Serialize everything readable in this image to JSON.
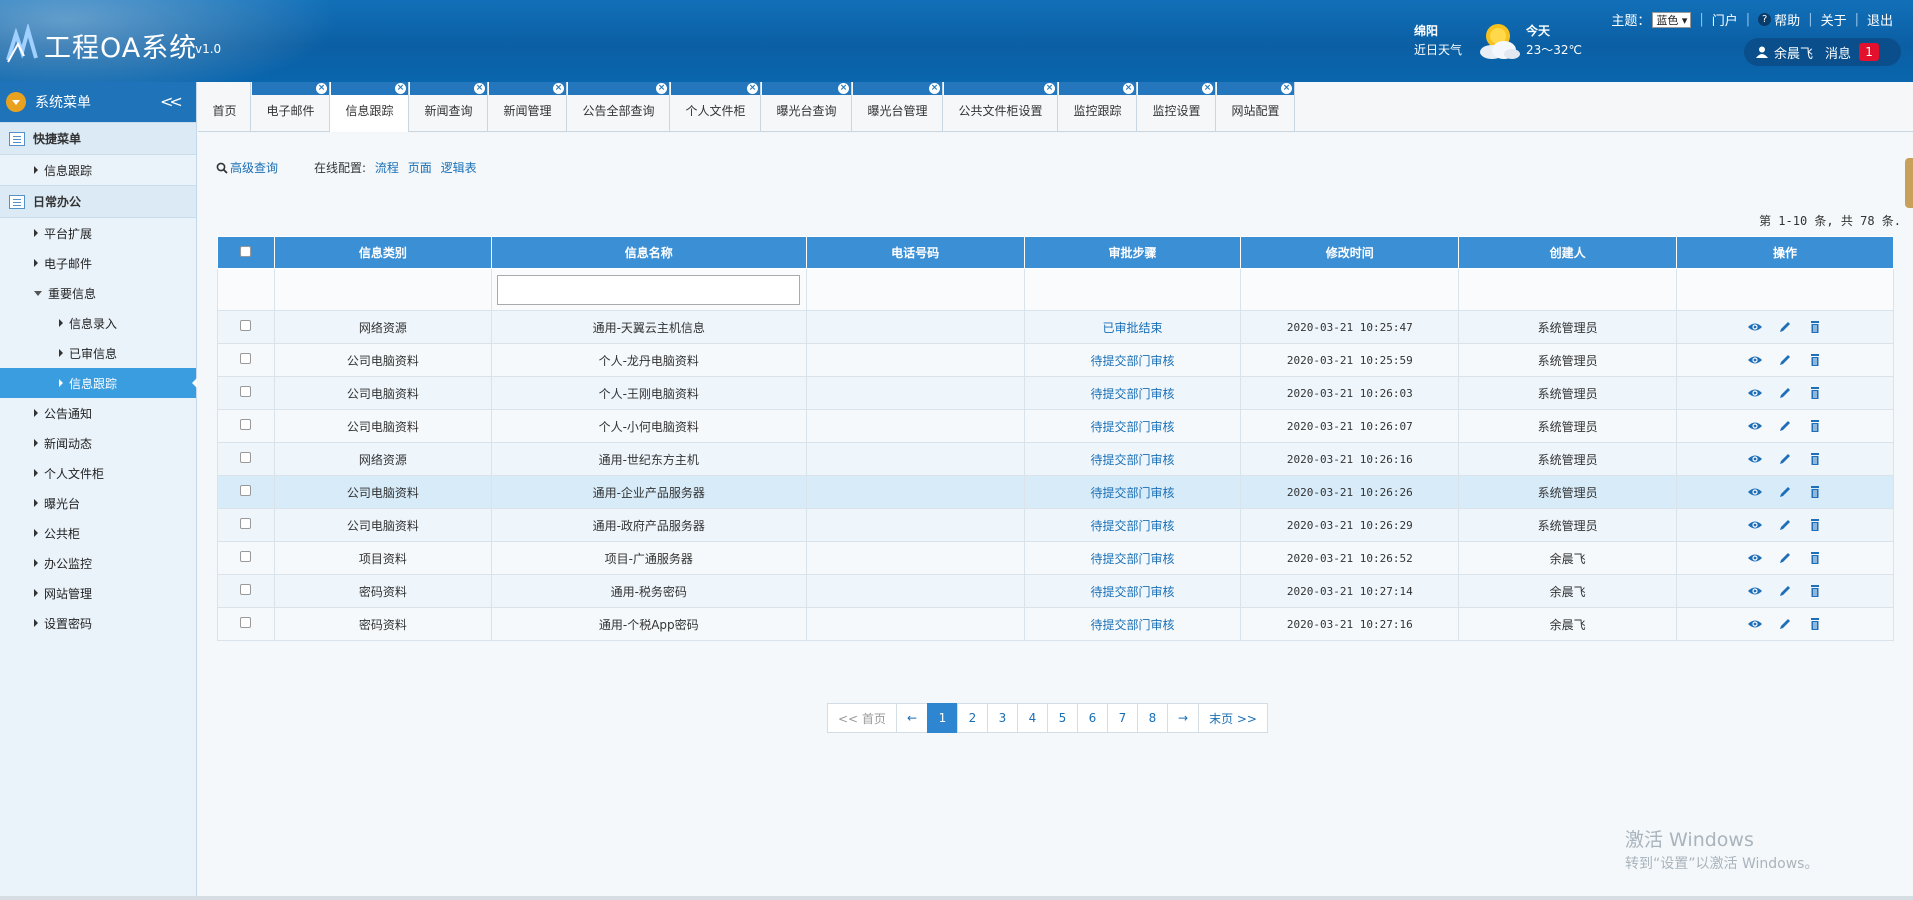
{
  "header": {
    "title": "工程OA系统",
    "version": "v1.0",
    "weather": {
      "city": "绵阳",
      "recent_label": "近日天气",
      "today_label": "今天",
      "temp": "23～32℃"
    },
    "theme_label": "主题：",
    "theme_value": "蓝色",
    "portal": "门户",
    "help": "帮助",
    "about": "关于",
    "logout": "退出",
    "user_name": "余晨飞",
    "message_label": "消息",
    "message_count": "1"
  },
  "sidebar": {
    "title": "系统菜单",
    "quick_menu": "快捷菜单",
    "quick_items": [
      "信息跟踪"
    ],
    "daily_office": "日常办公",
    "items": [
      {
        "label": "平台扩展",
        "level": 1
      },
      {
        "label": "电子邮件",
        "level": 1
      },
      {
        "label": "重要信息",
        "level": 1,
        "expanded": true
      },
      {
        "label": "信息录入",
        "level": 2
      },
      {
        "label": "已审信息",
        "level": 2
      },
      {
        "label": "信息跟踪",
        "level": 2,
        "active": true
      },
      {
        "label": "公告通知",
        "level": 1
      },
      {
        "label": "新闻动态",
        "level": 1
      },
      {
        "label": "个人文件柜",
        "level": 1
      },
      {
        "label": "曝光台",
        "level": 1
      },
      {
        "label": "公共柜",
        "level": 1
      },
      {
        "label": "办公监控",
        "level": 1
      },
      {
        "label": "网站管理",
        "level": 1
      },
      {
        "label": "设置密码",
        "level": 1
      }
    ]
  },
  "tabs": [
    {
      "label": "首页",
      "closable": false
    },
    {
      "label": "电子邮件",
      "closable": true
    },
    {
      "label": "信息跟踪",
      "closable": true,
      "active": true
    },
    {
      "label": "新闻查询",
      "closable": true
    },
    {
      "label": "新闻管理",
      "closable": true
    },
    {
      "label": "公告全部查询",
      "closable": true
    },
    {
      "label": "个人文件柜",
      "closable": true
    },
    {
      "label": "曝光台查询",
      "closable": true
    },
    {
      "label": "曝光台管理",
      "closable": true
    },
    {
      "label": "公共文件柜设置",
      "closable": true
    },
    {
      "label": "监控跟踪",
      "closable": true
    },
    {
      "label": "监控设置",
      "closable": true
    },
    {
      "label": "网站配置",
      "closable": true
    }
  ],
  "toolbar": {
    "advanced_search": "高级查询",
    "online_config_label": "在线配置:",
    "config_links": [
      "流程",
      "页面",
      "逻辑表"
    ]
  },
  "page_info": "第 1-10 条, 共 78 条.",
  "table": {
    "headers": [
      "信息类别",
      "信息名称",
      "电话号码",
      "审批步骤",
      "修改时间",
      "创建人",
      "操作"
    ],
    "rows": [
      {
        "category": "网络资源",
        "name": "通用-天翼云主机信息",
        "phone": "",
        "step": "已审批结束",
        "time": "2020-03-21 10:25:47",
        "creator": "系统管理员"
      },
      {
        "category": "公司电脑资料",
        "name": "个人-龙丹电脑资料",
        "phone": "",
        "step": "待提交部门审核",
        "time": "2020-03-21 10:25:59",
        "creator": "系统管理员"
      },
      {
        "category": "公司电脑资料",
        "name": "个人-王刚电脑资料",
        "phone": "",
        "step": "待提交部门审核",
        "time": "2020-03-21 10:26:03",
        "creator": "系统管理员"
      },
      {
        "category": "公司电脑资料",
        "name": "个人-小何电脑资料",
        "phone": "",
        "step": "待提交部门审核",
        "time": "2020-03-21 10:26:07",
        "creator": "系统管理员"
      },
      {
        "category": "网络资源",
        "name": "通用-世纪东方主机",
        "phone": "",
        "step": "待提交部门审核",
        "time": "2020-03-21 10:26:16",
        "creator": "系统管理员"
      },
      {
        "category": "公司电脑资料",
        "name": "通用-企业产品服务器",
        "phone": "",
        "step": "待提交部门审核",
        "time": "2020-03-21 10:26:26",
        "creator": "系统管理员"
      },
      {
        "category": "公司电脑资料",
        "name": "通用-政府产品服务器",
        "phone": "",
        "step": "待提交部门审核",
        "time": "2020-03-21 10:26:29",
        "creator": "系统管理员"
      },
      {
        "category": "项目资料",
        "name": "项目-广通服务器",
        "phone": "",
        "step": "待提交部门审核",
        "time": "2020-03-21 10:26:52",
        "creator": "余晨飞"
      },
      {
        "category": "密码资料",
        "name": "通用-税务密码",
        "phone": "",
        "step": "待提交部门审核",
        "time": "2020-03-21 10:27:14",
        "creator": "余晨飞"
      },
      {
        "category": "密码资料",
        "name": "通用-个税App密码",
        "phone": "",
        "step": "待提交部门审核",
        "time": "2020-03-21 10:27:16",
        "creator": "余晨飞"
      }
    ]
  },
  "pagination": {
    "first": "<< 首页",
    "prev": "←",
    "pages": [
      "1",
      "2",
      "3",
      "4",
      "5",
      "6",
      "7",
      "8"
    ],
    "current": "1",
    "next": "→",
    "last": "末页 >>"
  },
  "watermark": {
    "line1": "激活 Windows",
    "line2": "转到“设置”以激活 Windows。"
  },
  "colors": {
    "header_blue": "#0b5fa4",
    "accent_blue": "#3b8fd4",
    "active_blue": "#3a9de0",
    "badge_red": "#e3112b"
  }
}
